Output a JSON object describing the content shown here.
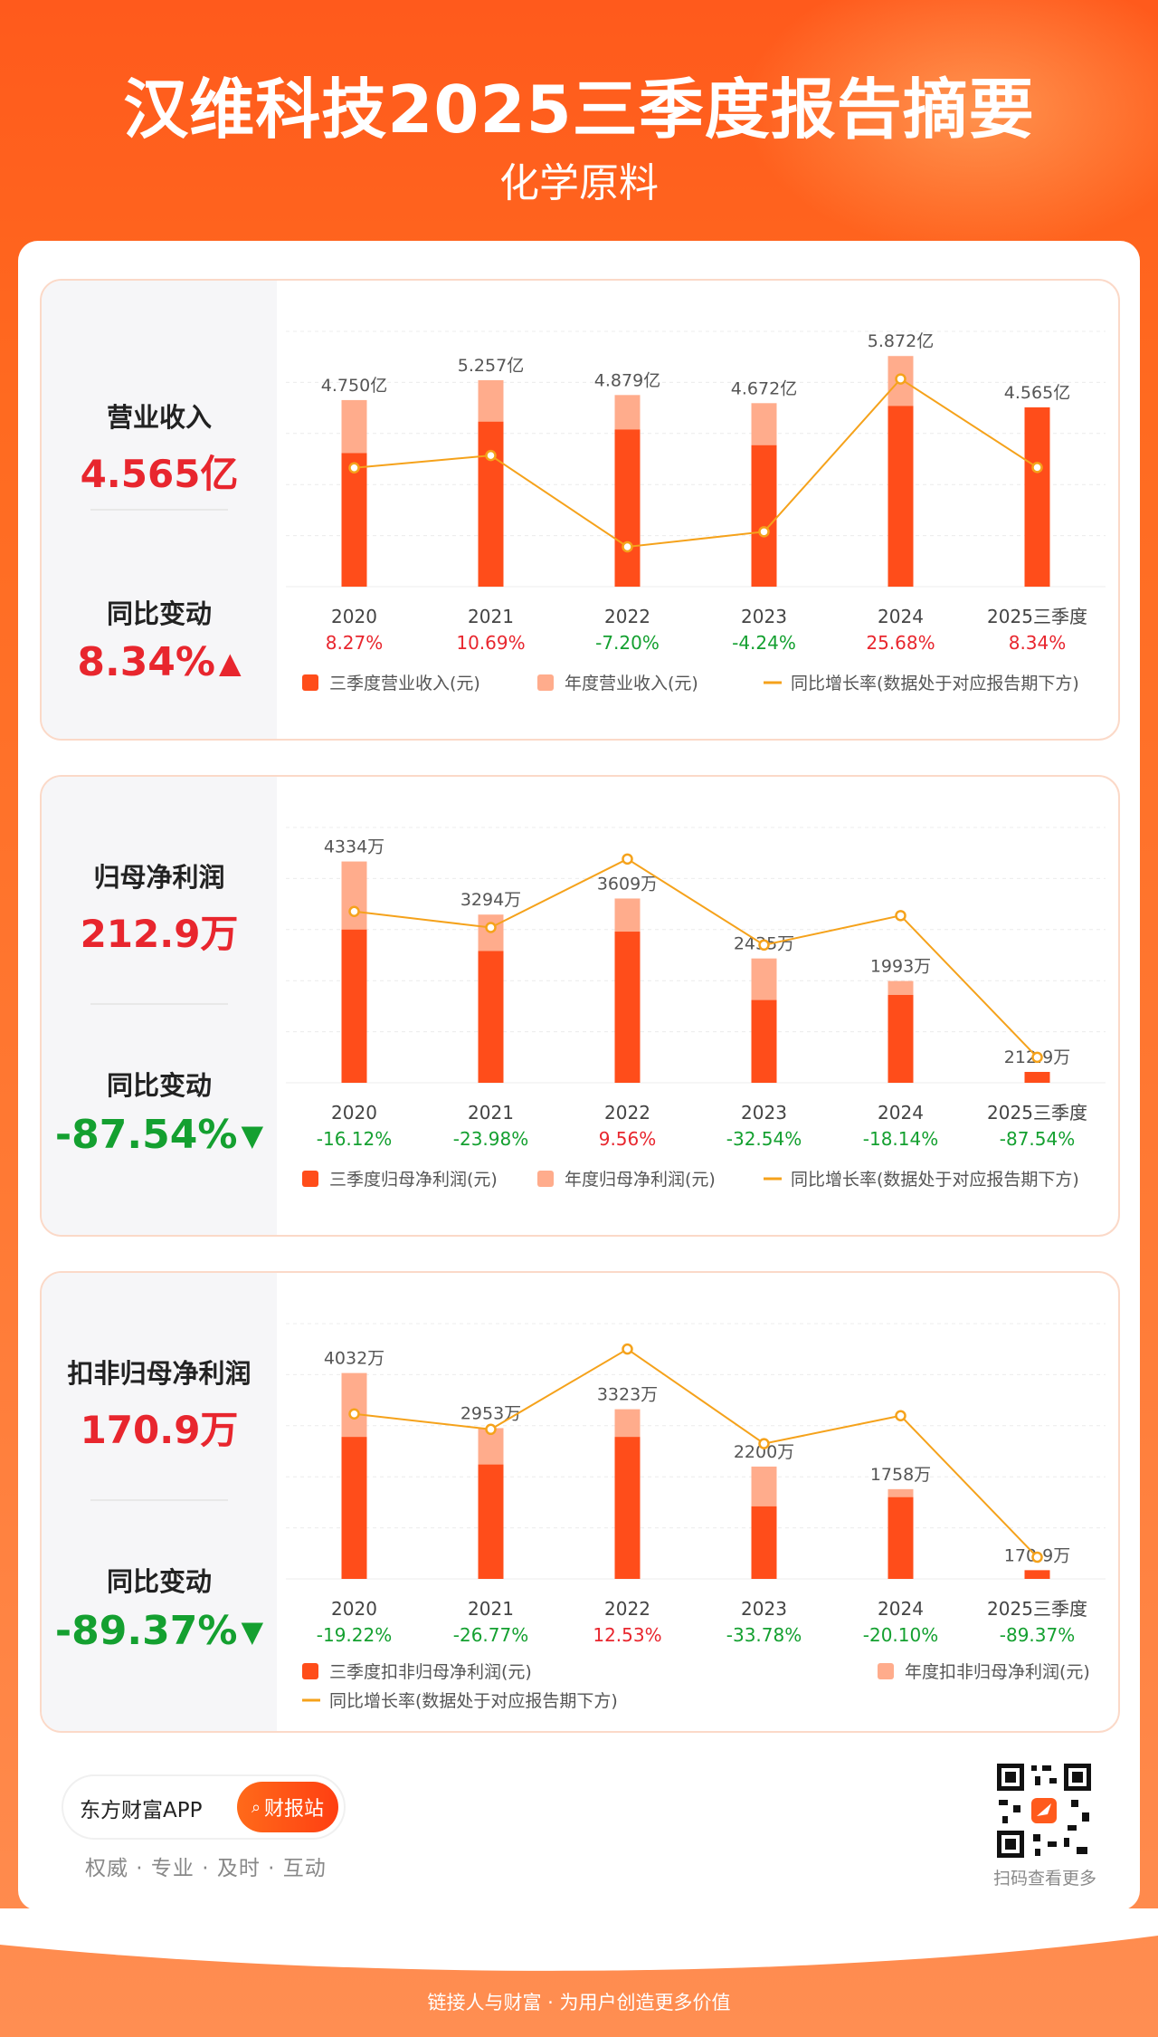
{
  "header": {
    "title": "汉维科技2025三季度报告摘要",
    "subtitle": "化学原料"
  },
  "panels": [
    {
      "metric_label": "营业收入",
      "metric_value": "4.565亿",
      "change_label": "同比变动",
      "change_value": "8.34%",
      "change_direction": "up"
    },
    {
      "metric_label": "归母净利润",
      "metric_value": "212.9万",
      "change_label": "同比变动",
      "change_value": "-87.54%",
      "change_direction": "down"
    },
    {
      "metric_label": "扣非归母净利润",
      "metric_value": "170.9万",
      "change_label": "同比变动",
      "change_value": "-89.37%",
      "change_direction": "down"
    }
  ],
  "chart_data": [
    {
      "type": "bar",
      "categories": [
        "2020",
        "2021",
        "2022",
        "2023",
        "2024",
        "2025三季度"
      ],
      "series": [
        {
          "name": "三季度营业收入(元)",
          "values": [
            3.4,
            4.2,
            4.0,
            3.6,
            4.6,
            4.565
          ]
        },
        {
          "name": "年度营业收入(元)",
          "values": [
            4.75,
            5.257,
            4.879,
            4.672,
            5.872,
            null
          ]
        },
        {
          "name": "同比增长率(数据处于对应报告期下方)",
          "values": [
            8.27,
            10.69,
            -7.2,
            -4.24,
            25.68,
            8.34
          ]
        }
      ],
      "bar_labels": [
        "4.750亿",
        "5.257亿",
        "4.879亿",
        "4.672亿",
        "5.872亿",
        "4.565亿"
      ],
      "growth_labels": [
        "8.27%",
        "10.69%",
        "-7.20%",
        "-4.24%",
        "25.68%",
        "8.34%"
      ],
      "ylim": [
        0,
        6.5
      ],
      "growth_lim": [
        -15,
        35
      ],
      "legend": "bottom"
    },
    {
      "type": "bar",
      "categories": [
        "2020",
        "2021",
        "2022",
        "2023",
        "2024",
        "2025三季度"
      ],
      "series": [
        {
          "name": "三季度归母净利润(元)",
          "values": [
            3000,
            2580,
            2960,
            1620,
            1720,
            212.9
          ]
        },
        {
          "name": "年度归母净利润(元)",
          "values": [
            4334,
            3294,
            3609,
            2435,
            1993,
            null
          ]
        },
        {
          "name": "同比增长率(数据处于对应报告期下方)",
          "values": [
            -16.12,
            -23.98,
            9.56,
            -32.54,
            -18.14,
            -87.54
          ]
        }
      ],
      "bar_labels": [
        "4334万",
        "3294万",
        "3609万",
        "2435万",
        "1993万",
        "212.9万"
      ],
      "growth_labels": [
        "-16.12%",
        "-23.98%",
        "9.56%",
        "-32.54%",
        "-18.14%",
        "-87.54%"
      ],
      "ylim": [
        0,
        5000
      ],
      "growth_lim": [
        -100,
        25
      ],
      "legend": "bottom"
    },
    {
      "type": "bar",
      "categories": [
        "2020",
        "2021",
        "2022",
        "2023",
        "2024",
        "2025三季度"
      ],
      "series": [
        {
          "name": "三季度扣非归母净利润(元)",
          "values": [
            2780,
            2240,
            2780,
            1420,
            1600,
            170.9
          ]
        },
        {
          "name": "年度扣非归母净利润(元)",
          "values": [
            4032,
            2953,
            3323,
            2200,
            1758,
            null
          ]
        },
        {
          "name": "同比增长率(数据处于对应报告期下方)",
          "values": [
            -19.22,
            -26.77,
            12.53,
            -33.78,
            -20.1,
            -89.37
          ]
        }
      ],
      "bar_labels": [
        "4032万",
        "2953万",
        "3323万",
        "2200万",
        "1758万",
        "170.9万"
      ],
      "growth_labels": [
        "-19.22%",
        "-26.77%",
        "12.53%",
        "-33.78%",
        "-20.10%",
        "-89.37%"
      ],
      "ylim": [
        0,
        5000
      ],
      "growth_lim": [
        -100,
        25
      ],
      "legend": "bottom-two-rows"
    }
  ],
  "footer": {
    "app_name": "东方财富APP",
    "station_button": "财报站",
    "slogan": "权威 · 专业 · 及时 · 互动",
    "qr_label": "扫码查看更多",
    "bottom_text": "链接人与财富 · 为用户创造更多价值"
  },
  "colors": {
    "q3_bar": "#ff4d1a",
    "annual_bar": "#ffac8c",
    "growth_line": "#f5a21b",
    "positive": "#e8262e",
    "negative": "#14a030",
    "grid": "#ececec"
  },
  "icons": {
    "up": "arrow-up-icon",
    "down": "arrow-down-icon",
    "search": "search-icon"
  }
}
